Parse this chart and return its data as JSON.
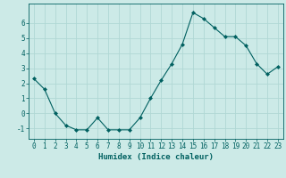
{
  "x": [
    0,
    1,
    2,
    3,
    4,
    5,
    6,
    7,
    8,
    9,
    10,
    11,
    12,
    13,
    14,
    15,
    16,
    17,
    18,
    19,
    20,
    21,
    22,
    23
  ],
  "y": [
    2.3,
    1.6,
    0.0,
    -0.8,
    -1.1,
    -1.1,
    -0.3,
    -1.1,
    -1.1,
    -1.1,
    -0.3,
    1.0,
    2.2,
    3.3,
    4.6,
    6.7,
    6.3,
    5.7,
    5.1,
    5.1,
    4.5,
    3.3,
    2.6,
    3.1
  ],
  "line_color": "#006060",
  "marker": "D",
  "marker_size": 2.0,
  "bg_color": "#cceae7",
  "grid_color": "#b0d8d4",
  "xlabel": "Humidex (Indice chaleur)",
  "xlim": [
    -0.5,
    23.5
  ],
  "ylim": [
    -1.7,
    7.3
  ],
  "xtick_labels": [
    "0",
    "1",
    "2",
    "3",
    "4",
    "5",
    "6",
    "7",
    "8",
    "9",
    "10",
    "11",
    "12",
    "13",
    "14",
    "15",
    "16",
    "17",
    "18",
    "19",
    "20",
    "21",
    "22",
    "23"
  ],
  "yticks": [
    -1,
    0,
    1,
    2,
    3,
    4,
    5,
    6
  ],
  "label_fontsize": 6.5,
  "tick_fontsize": 5.5
}
